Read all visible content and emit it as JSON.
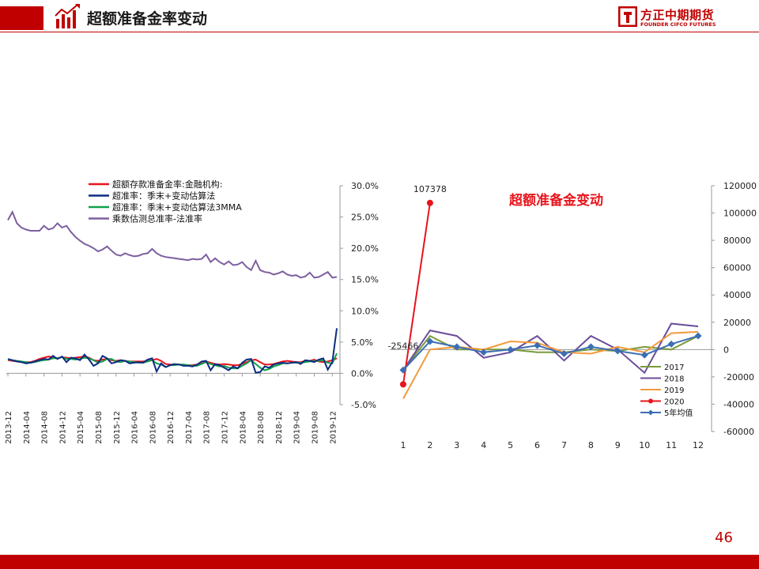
{
  "header": {
    "title": "超额准备金率变动",
    "brand_cn": "方正中期期货",
    "brand_en": "FOUNDER CIFCO FUTURES",
    "accent_color": "#c00000"
  },
  "page_number": "46",
  "chart_data": [
    {
      "type": "line",
      "y_axis_side": "right",
      "ylim": [
        -5,
        30
      ],
      "yticks": [
        "30.0%",
        "25.0%",
        "20.0%",
        "15.0%",
        "10.0%",
        "5.0%",
        "0.0%",
        "-5.0%"
      ],
      "ytick_values": [
        30,
        25,
        20,
        15,
        10,
        5,
        0,
        -5
      ],
      "xlabels": [
        "2013-12",
        "2014-04",
        "2014-08",
        "2014-12",
        "2015-04",
        "2015-08",
        "2015-12",
        "2016-04",
        "2016-08",
        "2016-12",
        "2017-04",
        "2017-08",
        "2017-12",
        "2018-04",
        "2018-08",
        "2018-12",
        "2019-04",
        "2019-08",
        "2019-12"
      ],
      "x_start": "2013-12",
      "legend_position": "top-left",
      "series": [
        {
          "name": "超额存款准备金率:金融机构:",
          "color": "#e8141c",
          "values": [
            2.1,
            2.0,
            1.9,
            1.8,
            1.8,
            1.8,
            2.0,
            2.3,
            2.5,
            2.7,
            2.6,
            2.4,
            2.6,
            2.5,
            2.4,
            2.5,
            2.6,
            2.7,
            2.5,
            2.1,
            2.0,
            2.2,
            2.3,
            2.1,
            2.0,
            2.1,
            2.0,
            1.9,
            1.9,
            1.9,
            1.9,
            2.0,
            2.1,
            2.3,
            2.0,
            1.5,
            1.4,
            1.4,
            1.4,
            1.3,
            1.3,
            1.3,
            1.4,
            1.6,
            1.9,
            1.7,
            1.5,
            1.4,
            1.5,
            1.4,
            1.3,
            1.3,
            1.5,
            1.8,
            2.1,
            2.2,
            1.8,
            1.4,
            1.4,
            1.5,
            1.7,
            1.9,
            2.0,
            1.9,
            1.8,
            1.8,
            2.0,
            2.0,
            2.2,
            1.9,
            1.8,
            1.9,
            2.1,
            2.4
          ]
        },
        {
          "name": "超准率：季末+变动估算法",
          "color": "#0b2c82",
          "values": [
            2.3,
            2.1,
            1.9,
            1.8,
            1.6,
            1.7,
            1.9,
            2.1,
            2.3,
            2.2,
            2.8,
            2.3,
            2.7,
            1.8,
            2.5,
            2.4,
            2.1,
            3.0,
            2.2,
            1.2,
            1.6,
            2.8,
            2.4,
            1.6,
            1.8,
            2.1,
            2.0,
            1.6,
            1.7,
            1.8,
            1.7,
            2.2,
            2.4,
            0.3,
            1.6,
            1.0,
            1.3,
            1.5,
            1.4,
            1.2,
            1.2,
            1.1,
            1.4,
            1.9,
            2.0,
            0.5,
            1.5,
            1.3,
            0.9,
            0.5,
            1.1,
            0.8,
            1.7,
            2.2,
            2.3,
            0.1,
            0.2,
            1.1,
            0.9,
            1.4,
            1.6,
            1.7,
            1.6,
            1.7,
            1.8,
            1.5,
            2.1,
            2.0,
            1.8,
            2.2,
            2.4,
            0.6,
            1.8,
            7.2
          ]
        },
        {
          "name": "超准率：季末+变动估算法3MMA",
          "color": "#12a04a",
          "values": [
            2.2,
            2.1,
            2.0,
            1.9,
            1.8,
            1.7,
            1.8,
            2.0,
            2.1,
            2.2,
            2.4,
            2.4,
            2.6,
            2.3,
            2.3,
            2.2,
            2.3,
            2.5,
            2.4,
            2.1,
            1.7,
            1.9,
            2.3,
            2.3,
            1.9,
            1.8,
            2.0,
            1.9,
            1.8,
            1.7,
            1.7,
            1.9,
            2.1,
            1.6,
            1.4,
            1.0,
            1.3,
            1.3,
            1.4,
            1.4,
            1.3,
            1.2,
            1.2,
            1.5,
            1.8,
            1.5,
            1.3,
            1.1,
            1.2,
            0.9,
            0.8,
            0.8,
            1.2,
            1.6,
            2.1,
            1.5,
            0.9,
            0.5,
            0.7,
            1.1,
            1.3,
            1.6,
            1.6,
            1.7,
            1.7,
            1.7,
            1.8,
            1.9,
            2.0,
            2.0,
            2.1,
            1.7,
            1.6,
            3.2
          ]
        },
        {
          "name": "乘数估测总准率-法准率",
          "color": "#7d5fa0",
          "values": [
            24.5,
            25.8,
            24.0,
            23.3,
            23.0,
            22.8,
            22.8,
            22.8,
            23.6,
            23.0,
            23.2,
            24.0,
            23.3,
            23.6,
            22.6,
            21.8,
            21.2,
            20.7,
            20.4,
            20.0,
            19.5,
            19.8,
            20.3,
            19.6,
            19.0,
            18.8,
            19.2,
            18.9,
            18.7,
            18.8,
            19.1,
            19.2,
            19.9,
            19.2,
            18.8,
            18.6,
            18.5,
            18.4,
            18.3,
            18.2,
            18.1,
            18.3,
            18.2,
            18.3,
            19.0,
            17.8,
            18.4,
            17.8,
            17.4,
            17.9,
            17.3,
            17.4,
            17.8,
            17.0,
            16.5,
            18.0,
            16.5,
            16.2,
            16.1,
            15.8,
            16.0,
            16.3,
            15.8,
            15.6,
            15.7,
            15.3,
            15.5,
            16.1,
            15.3,
            15.4,
            15.8,
            16.2,
            15.3,
            15.4
          ]
        }
      ]
    },
    {
      "type": "line",
      "y_axis_side": "right",
      "annotation_title": "超额准备金变动",
      "categories": [
        "1",
        "2",
        "3",
        "4",
        "5",
        "6",
        "7",
        "8",
        "9",
        "10",
        "11",
        "12"
      ],
      "ylim": [
        -60000,
        120000
      ],
      "yticks": [
        "120000",
        "100000",
        "80000",
        "60000",
        "40000",
        "20000",
        "0",
        "-20000",
        "-40000",
        "-60000"
      ],
      "ytick_values": [
        120000,
        100000,
        80000,
        60000,
        40000,
        20000,
        0,
        -20000,
        -40000,
        -60000
      ],
      "legend_position": "bottom-right",
      "data_labels": [
        "107378",
        "-25466"
      ],
      "series": [
        {
          "name": "2017",
          "color": "#7a9a3a",
          "marker": "none",
          "values": [
            -15000,
            10000,
            0,
            0,
            0,
            -2000,
            -2000,
            0,
            -1000,
            2000,
            0,
            10000
          ]
        },
        {
          "name": "2018",
          "color": "#6b4c9a",
          "marker": "none",
          "values": [
            -15000,
            14000,
            10000,
            -6000,
            -2000,
            10000,
            -8000,
            10000,
            0,
            -17000,
            19000,
            17000
          ]
        },
        {
          "name": "2019",
          "color": "#f39a3c",
          "marker": "none",
          "values": [
            -36000,
            0,
            2000,
            0,
            6000,
            5000,
            -2000,
            -3000,
            2000,
            -2000,
            12000,
            13000
          ]
        },
        {
          "name": "2020",
          "color": "#e8141c",
          "marker": "circle",
          "values": [
            -25466,
            107378,
            null,
            null,
            null,
            null,
            null,
            null,
            null,
            null,
            null,
            null
          ]
        },
        {
          "name": "5年均值",
          "color": "#3d6eb4",
          "marker": "diamond",
          "values": [
            -15000,
            6000,
            2000,
            -2000,
            0,
            3000,
            -3000,
            2000,
            -1000,
            -4000,
            4000,
            10000
          ]
        }
      ]
    }
  ]
}
